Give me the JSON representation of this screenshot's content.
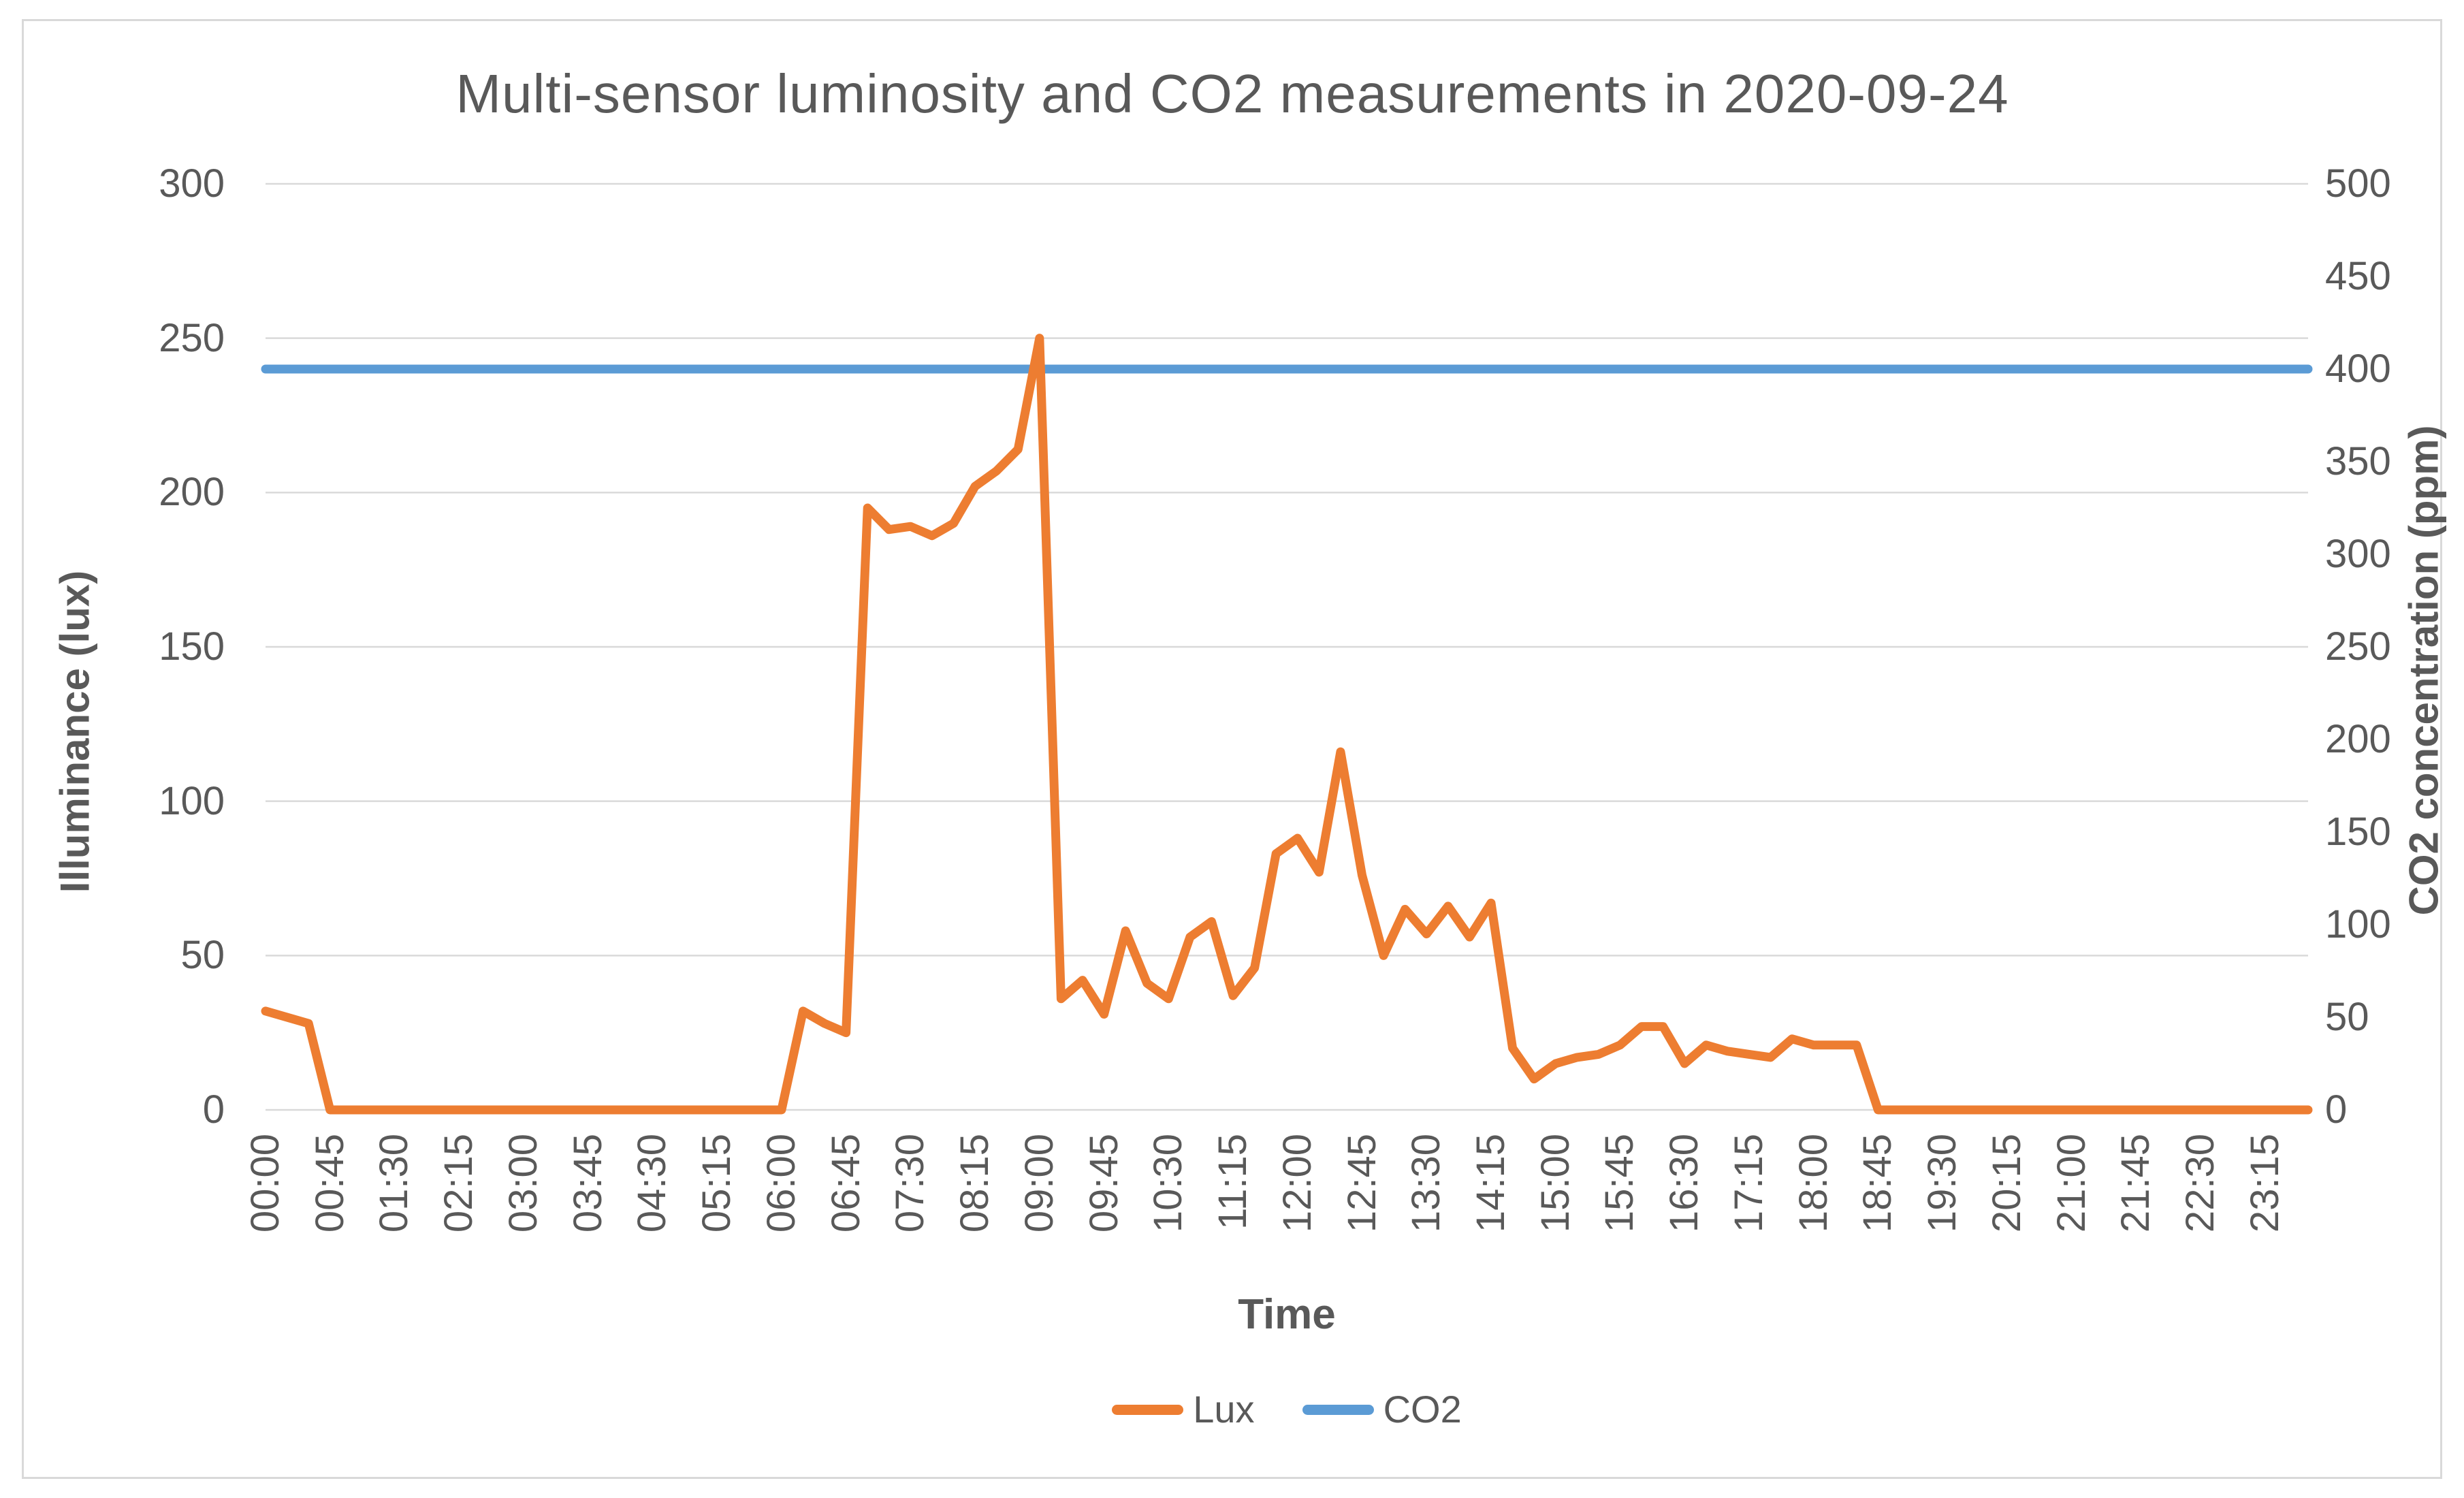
{
  "title": "Multi-sensor luminosity and CO2 measurements in 2020-09-24",
  "colors": {
    "lux": "#ED7D31",
    "co2": "#5B9BD5",
    "gridline": "#D9D9D9",
    "text": "#595959",
    "frame_border": "#D9D9D9"
  },
  "legend": {
    "items": [
      {
        "label": "Lux",
        "color": "#ED7D31"
      },
      {
        "label": "CO2",
        "color": "#5B9BD5"
      }
    ],
    "position": "bottom"
  },
  "y_axis_left": {
    "title": "Illuminance (lux)",
    "tick_labels": [
      300,
      250,
      200,
      150,
      100,
      50,
      0
    ],
    "min": 0,
    "max": 300
  },
  "y_axis_right": {
    "title": "CO2 concentration (ppm)",
    "tick_labels": [
      500,
      450,
      400,
      350,
      300,
      250,
      200,
      150,
      100,
      50,
      0
    ],
    "min": 0,
    "max": 500
  },
  "x_axis": {
    "title": "Time",
    "tick_labels": [
      "00:00",
      "00:45",
      "01:30",
      "02:15",
      "03:00",
      "03:45",
      "04:30",
      "05:15",
      "06:00",
      "06:45",
      "07:30",
      "08:15",
      "09:00",
      "09:45",
      "10:30",
      "11:15",
      "12:00",
      "12:45",
      "13:30",
      "14:15",
      "15:00",
      "15:45",
      "16:30",
      "17:15",
      "18:00",
      "18:45",
      "19:30",
      "20:15",
      "21:00",
      "21:45",
      "22:30",
      "23:15"
    ],
    "ticks_every_n_points": 3
  },
  "chart_data": {
    "type": "line",
    "x": [
      "00:00",
      "00:15",
      "00:30",
      "00:45",
      "01:00",
      "01:15",
      "01:30",
      "01:45",
      "02:00",
      "02:15",
      "02:30",
      "02:45",
      "03:00",
      "03:15",
      "03:30",
      "03:45",
      "04:00",
      "04:15",
      "04:30",
      "04:45",
      "05:00",
      "05:15",
      "05:30",
      "05:45",
      "06:00",
      "06:15",
      "06:30",
      "06:45",
      "07:00",
      "07:15",
      "07:30",
      "07:45",
      "08:00",
      "08:15",
      "08:30",
      "08:45",
      "09:00",
      "09:15",
      "09:30",
      "09:45",
      "10:00",
      "10:15",
      "10:30",
      "10:45",
      "11:00",
      "11:15",
      "11:30",
      "11:45",
      "12:00",
      "12:15",
      "12:30",
      "12:45",
      "13:00",
      "13:15",
      "13:30",
      "13:45",
      "14:00",
      "14:15",
      "14:30",
      "14:45",
      "15:00",
      "15:15",
      "15:30",
      "15:45",
      "16:00",
      "16:15",
      "16:30",
      "16:45",
      "17:00",
      "17:15",
      "17:30",
      "17:45",
      "18:00",
      "18:15",
      "18:30",
      "18:45",
      "19:00",
      "19:15",
      "19:30",
      "19:45",
      "20:00",
      "20:15",
      "20:30",
      "20:45",
      "21:00",
      "21:15",
      "21:30",
      "21:45",
      "22:00",
      "22:15",
      "22:30",
      "22:45",
      "23:00",
      "23:15",
      "23:30",
      "23:45"
    ],
    "series": [
      {
        "name": "Lux",
        "axis": "left",
        "color": "#ED7D31",
        "values": [
          32,
          30,
          28,
          0,
          0,
          0,
          0,
          0,
          0,
          0,
          0,
          0,
          0,
          0,
          0,
          0,
          0,
          0,
          0,
          0,
          0,
          0,
          0,
          0,
          0,
          32,
          28,
          25,
          195,
          188,
          189,
          186,
          190,
          202,
          207,
          214,
          250,
          36,
          42,
          31,
          58,
          41,
          36,
          56,
          61,
          37,
          46,
          83,
          88,
          77,
          116,
          76,
          50,
          65,
          57,
          66,
          56,
          67,
          20,
          10,
          15,
          17,
          18,
          21,
          27,
          27,
          15,
          21,
          19,
          18,
          17,
          23,
          21,
          21,
          21,
          0,
          0,
          0,
          0,
          0,
          0,
          0,
          0,
          0,
          0,
          0,
          0,
          0,
          0,
          0,
          0,
          0,
          0,
          0,
          0,
          0
        ]
      },
      {
        "name": "CO2",
        "axis": "right",
        "color": "#5B9BD5",
        "constant": 400
      }
    ],
    "ylim_left": [
      0,
      300
    ],
    "ylim_right": [
      0,
      500
    ],
    "grid": "horizontal",
    "legend_position": "bottom"
  }
}
